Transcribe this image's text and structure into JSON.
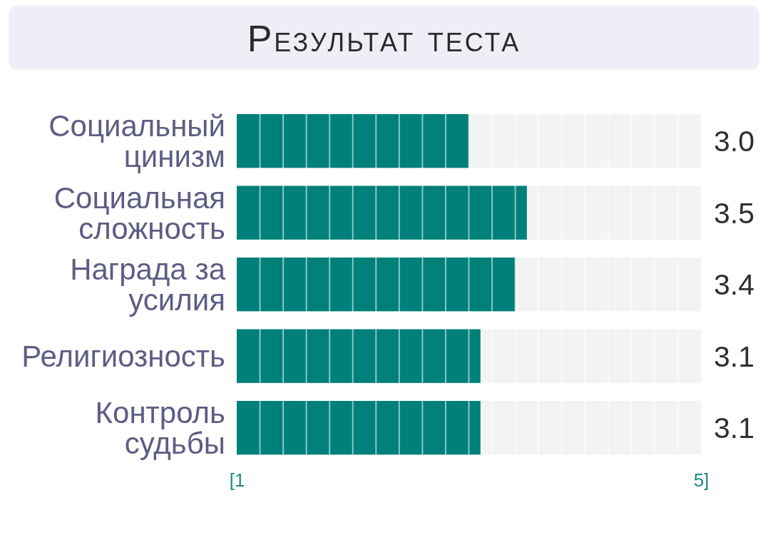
{
  "chart_data": {
    "type": "bar",
    "orientation": "horizontal",
    "title": "Результат теста",
    "categories": [
      "Социальный цинизм",
      "Социальная сложность",
      "Награда за усилия",
      "Религиозность",
      "Контроль судьбы"
    ],
    "values": [
      3.0,
      3.5,
      3.4,
      3.1,
      3.1
    ],
    "color": "#00807a",
    "value_labels": [
      "3.0",
      "3.5",
      "3.4",
      "3.1",
      "3.1"
    ],
    "xlim": [
      1,
      5
    ],
    "xticks": [
      {
        "value": 1,
        "label": "[1"
      },
      {
        "value": 1.2,
        "label": null
      },
      {
        "value": 1.4,
        "label": null
      },
      {
        "value": 1.6,
        "label": null
      },
      {
        "value": 1.8,
        "label": null
      },
      {
        "value": 2,
        "label": null
      },
      {
        "value": 2.2,
        "label": null
      },
      {
        "value": 2.4,
        "label": null
      },
      {
        "value": 2.6,
        "label": null
      },
      {
        "value": 2.8,
        "label": null
      },
      {
        "value": 3,
        "label": null
      },
      {
        "value": 3.2,
        "label": null
      },
      {
        "value": 3.4,
        "label": null
      },
      {
        "value": 3.6,
        "label": null
      },
      {
        "value": 3.8,
        "label": null
      },
      {
        "value": 4,
        "label": null
      },
      {
        "value": 4.2,
        "label": null
      },
      {
        "value": 4.4,
        "label": null
      },
      {
        "value": 4.6,
        "label": null
      },
      {
        "value": 4.8,
        "label": null
      },
      {
        "value": 5,
        "label": "5]"
      }
    ],
    "grid": "x"
  }
}
